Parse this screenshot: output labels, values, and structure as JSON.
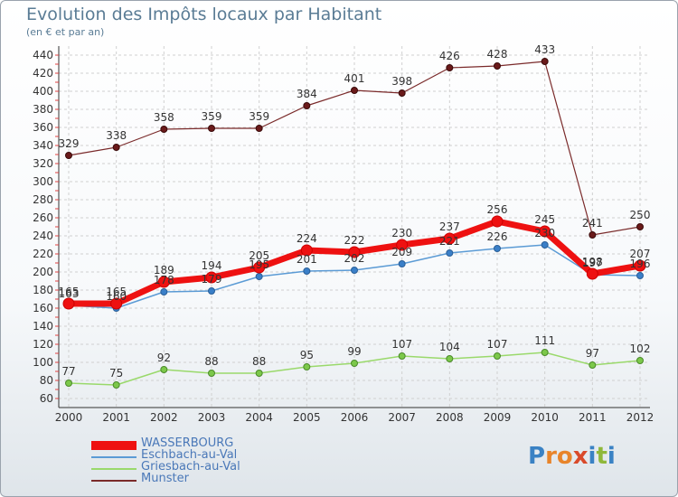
{
  "header": {
    "title": "Evolution des Impôts locaux par Habitant",
    "subtitle": "(en € et par an)"
  },
  "logo": {
    "text": "Proxiti",
    "letters": [
      "P",
      "r",
      "o",
      "x",
      "i",
      "t",
      "i"
    ],
    "colors": [
      "#3a82c4",
      "#e8842a",
      "#e8842a",
      "#d94a2a",
      "#3a82c4",
      "#8fb83a",
      "#3a82c4"
    ]
  },
  "chart_data": {
    "type": "line",
    "title": "Evolution des Impôts locaux par Habitant",
    "subtitle": "(en € et par an)",
    "xlabel": "",
    "ylabel": "",
    "categories": [
      "2000",
      "2001",
      "2002",
      "2003",
      "2004",
      "2005",
      "2006",
      "2007",
      "2008",
      "2009",
      "2010",
      "2011",
      "2012"
    ],
    "ylim": [
      60,
      440
    ],
    "yticks": [
      60,
      80,
      100,
      120,
      140,
      160,
      180,
      200,
      220,
      240,
      260,
      280,
      300,
      320,
      340,
      360,
      380,
      400,
      420,
      440
    ],
    "grid": true,
    "legend_position": "bottom-left",
    "series": [
      {
        "name": "WASSERBOURG",
        "color": "#ee1111",
        "values": [
          165,
          165,
          189,
          194,
          205,
          224,
          222,
          230,
          237,
          256,
          245,
          198,
          207
        ]
      },
      {
        "name": "Eschbach-au-Val",
        "color": "#5b9bd5",
        "values": [
          163,
          160,
          178,
          179,
          195,
          201,
          202,
          209,
          221,
          226,
          230,
          197,
          196
        ]
      },
      {
        "name": "Griesbach-au-Val",
        "color": "#9ad96b",
        "values": [
          77,
          75,
          92,
          88,
          88,
          95,
          99,
          107,
          104,
          107,
          111,
          97,
          102
        ]
      },
      {
        "name": "Munster",
        "color": "#7a2a2a",
        "values": [
          329,
          338,
          358,
          359,
          359,
          384,
          401,
          398,
          426,
          428,
          433,
          241,
          250
        ]
      }
    ]
  }
}
